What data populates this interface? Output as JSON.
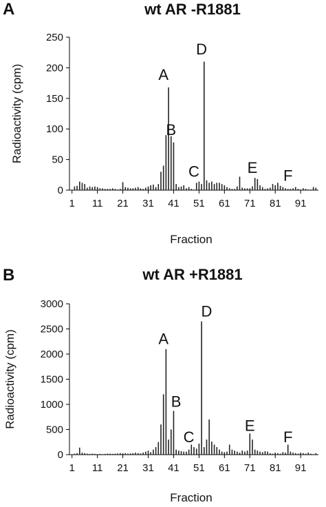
{
  "chart_data": [
    {
      "type": "bar",
      "panel_label": "A",
      "title": "wt AR -R1881",
      "xlabel": "Fraction",
      "ylabel": "Radioactivity (cpm)",
      "ylim": [
        0,
        250
      ],
      "yticks": [
        0,
        50,
        100,
        150,
        200,
        250
      ],
      "xticks": [
        1,
        11,
        21,
        31,
        41,
        51,
        61,
        71,
        81,
        91
      ],
      "xlim": [
        0,
        98
      ],
      "x": [
        2,
        3,
        4,
        5,
        6,
        7,
        8,
        9,
        10,
        11,
        12,
        13,
        14,
        15,
        16,
        17,
        18,
        19,
        20,
        21,
        22,
        23,
        24,
        25,
        26,
        27,
        28,
        29,
        30,
        31,
        32,
        33,
        34,
        35,
        36,
        37,
        38,
        39,
        40,
        41,
        42,
        43,
        44,
        45,
        46,
        47,
        48,
        49,
        50,
        51,
        52,
        53,
        54,
        55,
        56,
        57,
        58,
        59,
        60,
        61,
        62,
        63,
        64,
        65,
        66,
        67,
        68,
        69,
        70,
        71,
        72,
        73,
        74,
        75,
        76,
        77,
        78,
        79,
        80,
        81,
        82,
        83,
        84,
        85,
        86,
        87,
        88,
        89,
        90,
        91,
        92,
        93,
        94,
        95,
        96,
        97
      ],
      "values": [
        6,
        7,
        14,
        12,
        10,
        4,
        6,
        5,
        6,
        5,
        3,
        3,
        2,
        2,
        2,
        3,
        2,
        1,
        2,
        13,
        5,
        4,
        3,
        3,
        4,
        5,
        3,
        2,
        4,
        6,
        8,
        9,
        5,
        10,
        30,
        40,
        90,
        168,
        88,
        78,
        10,
        5,
        6,
        8,
        3,
        5,
        2,
        1,
        12,
        14,
        10,
        210,
        16,
        12,
        14,
        10,
        12,
        12,
        10,
        8,
        5,
        3,
        2,
        2,
        6,
        22,
        4,
        3,
        3,
        3,
        6,
        20,
        18,
        8,
        5,
        2,
        3,
        4,
        10,
        8,
        12,
        7,
        5,
        3,
        2,
        2,
        3,
        5,
        2,
        1,
        3,
        2,
        1,
        1,
        5,
        4
      ],
      "annotations": [
        {
          "label": "A",
          "x": 37,
          "y": 180
        },
        {
          "label": "B",
          "x": 40,
          "y": 90
        },
        {
          "label": "C",
          "x": 49,
          "y": 22
        },
        {
          "label": "D",
          "x": 52,
          "y": 222
        },
        {
          "label": "E",
          "x": 72,
          "y": 28
        },
        {
          "label": "F",
          "x": 86,
          "y": 15
        }
      ]
    },
    {
      "type": "bar",
      "panel_label": "B",
      "title": "wt AR +R1881",
      "xlabel": "Fraction",
      "ylabel": "Radioactivity (cpm)",
      "ylim": [
        0,
        3000
      ],
      "yticks": [
        0,
        500,
        1000,
        1500,
        2000,
        2500,
        3000
      ],
      "xticks": [
        1,
        11,
        21,
        31,
        41,
        51,
        61,
        71,
        81,
        91
      ],
      "xlim": [
        0,
        98
      ],
      "x": [
        2,
        3,
        4,
        5,
        6,
        7,
        8,
        9,
        10,
        11,
        12,
        13,
        14,
        15,
        16,
        17,
        18,
        19,
        20,
        21,
        22,
        23,
        24,
        25,
        26,
        27,
        28,
        29,
        30,
        31,
        32,
        33,
        34,
        35,
        36,
        37,
        38,
        39,
        40,
        41,
        42,
        43,
        44,
        45,
        46,
        47,
        48,
        49,
        50,
        51,
        52,
        53,
        54,
        55,
        56,
        57,
        58,
        59,
        60,
        61,
        62,
        63,
        64,
        65,
        66,
        67,
        68,
        69,
        70,
        71,
        72,
        73,
        74,
        75,
        76,
        77,
        78,
        79,
        80,
        81,
        82,
        83,
        84,
        85,
        86,
        87,
        88,
        89,
        90,
        91,
        92,
        93,
        94,
        95,
        96,
        97
      ],
      "values": [
        20,
        30,
        140,
        40,
        30,
        20,
        15,
        20,
        15,
        10,
        15,
        10,
        15,
        20,
        20,
        15,
        20,
        25,
        30,
        25,
        30,
        20,
        25,
        30,
        40,
        30,
        25,
        40,
        60,
        80,
        50,
        100,
        150,
        250,
        600,
        1200,
        2100,
        300,
        500,
        870,
        100,
        80,
        70,
        60,
        60,
        100,
        200,
        150,
        120,
        220,
        2650,
        150,
        300,
        700,
        260,
        200,
        150,
        100,
        60,
        50,
        60,
        200,
        100,
        80,
        60,
        40,
        80,
        60,
        80,
        420,
        300,
        100,
        80,
        60,
        50,
        70,
        60,
        30,
        20,
        40,
        30,
        20,
        50,
        40,
        200,
        60,
        40,
        30,
        20,
        40,
        30,
        20,
        40,
        20,
        10,
        30
      ],
      "annotations": [
        {
          "label": "A",
          "x": 37,
          "y": 2200
        },
        {
          "label": "B",
          "x": 42,
          "y": 950
        },
        {
          "label": "C",
          "x": 47,
          "y": 250
        },
        {
          "label": "D",
          "x": 54,
          "y": 2750
        },
        {
          "label": "E",
          "x": 71,
          "y": 470
        },
        {
          "label": "F",
          "x": 86,
          "y": 250
        }
      ]
    }
  ]
}
